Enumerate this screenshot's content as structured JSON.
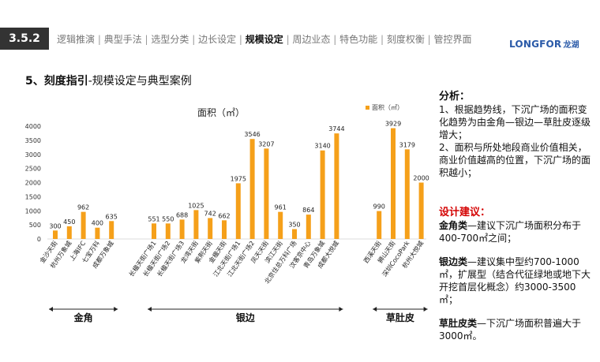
{
  "header": {
    "section_number": "3.5.2",
    "nav_items": [
      {
        "label": "逻辑推演",
        "active": false
      },
      {
        "label": "典型手法",
        "active": false
      },
      {
        "label": "选型分类",
        "active": false
      },
      {
        "label": "边长设定",
        "active": false
      },
      {
        "label": "规模设定",
        "active": true
      },
      {
        "label": "周边业态",
        "active": false
      },
      {
        "label": "特色功能",
        "active": false
      },
      {
        "label": "刻度权衡",
        "active": false
      },
      {
        "label": "管控界面",
        "active": false
      }
    ],
    "logo_text": "LONGFOR",
    "logo_cn": "龙湖"
  },
  "slide_title": {
    "bold": "5、刻度指引",
    "rest": "-规模设定与典型案例"
  },
  "chart_data": {
    "type": "bar",
    "title": "面积（㎡）",
    "legend": "面积（㎡）",
    "legend_position": "top-right",
    "ylim": [
      0,
      4000
    ],
    "yticks": [
      0,
      500,
      1000,
      1500,
      2000,
      2500,
      3000,
      3500,
      4000
    ],
    "grid": false,
    "bar_color": "#f5a01a",
    "categories": [
      "金沙天街",
      "杭州万象城",
      "上海IFC",
      "七宝万科",
      "成都万象城",
      "长楹天街广场1",
      "长楹天街广场2",
      "长楹天街广场3",
      "龙湾天街",
      "紫荆天街",
      "金楹天街",
      "江北天街广场1",
      "江北天街广场2",
      "凤天天街",
      "滨江天街",
      "北京住总万科广场",
      "汶客京中心",
      "青岛万象城",
      "成都大悦城",
      "西溪天街",
      "狮山天街",
      "深圳CocoPark",
      "杭州大悦城"
    ],
    "values": [
      300,
      450,
      962,
      400,
      635,
      551,
      550,
      688,
      1025,
      742,
      662,
      1975,
      3546,
      3207,
      961,
      350,
      864,
      3140,
      3744,
      990,
      3929,
      3179,
      2000
    ],
    "groups": [
      {
        "label": "金角",
        "start": 0,
        "end": 4
      },
      {
        "label": "银边",
        "start": 5,
        "end": 18
      },
      {
        "label": "草肚皮",
        "start": 19,
        "end": 22
      }
    ]
  },
  "analysis": {
    "heading": "分析：",
    "point1": "1、根据趋势线，下沉广场的面积变化趋势为由金角—银边—草肚皮逐级增大；",
    "point2": "2、面积与所处地段商业价值相关，商业价值越高的位置，下沉广场的面积越小；"
  },
  "suggestion": {
    "heading": "设计建议：",
    "gold_label": "金角类",
    "gold_text": "—建议下沉广场面积分布于400-700㎡之间；",
    "silver_label": "银边类",
    "silver_text": "—建议集中型约700-1000㎡，扩展型（结合代征绿地或地下大开挖首层化概念）约3000-3500㎡；",
    "grass_label": "草肚皮类",
    "grass_text": "—下沉广场面积普遍大于3000㎡。"
  }
}
